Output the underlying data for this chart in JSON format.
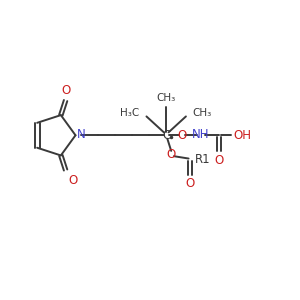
{
  "bg_color": "#ffffff",
  "line_color": "#3a3a3a",
  "n_color": "#4040cc",
  "o_color": "#cc2020",
  "bond_lw": 1.4,
  "font_size": 8.5,
  "small_font": 7.5,
  "fig_w": 3.0,
  "fig_h": 3.0,
  "dpi": 100,
  "xlim": [
    0,
    10
  ],
  "ylim": [
    0,
    10
  ]
}
